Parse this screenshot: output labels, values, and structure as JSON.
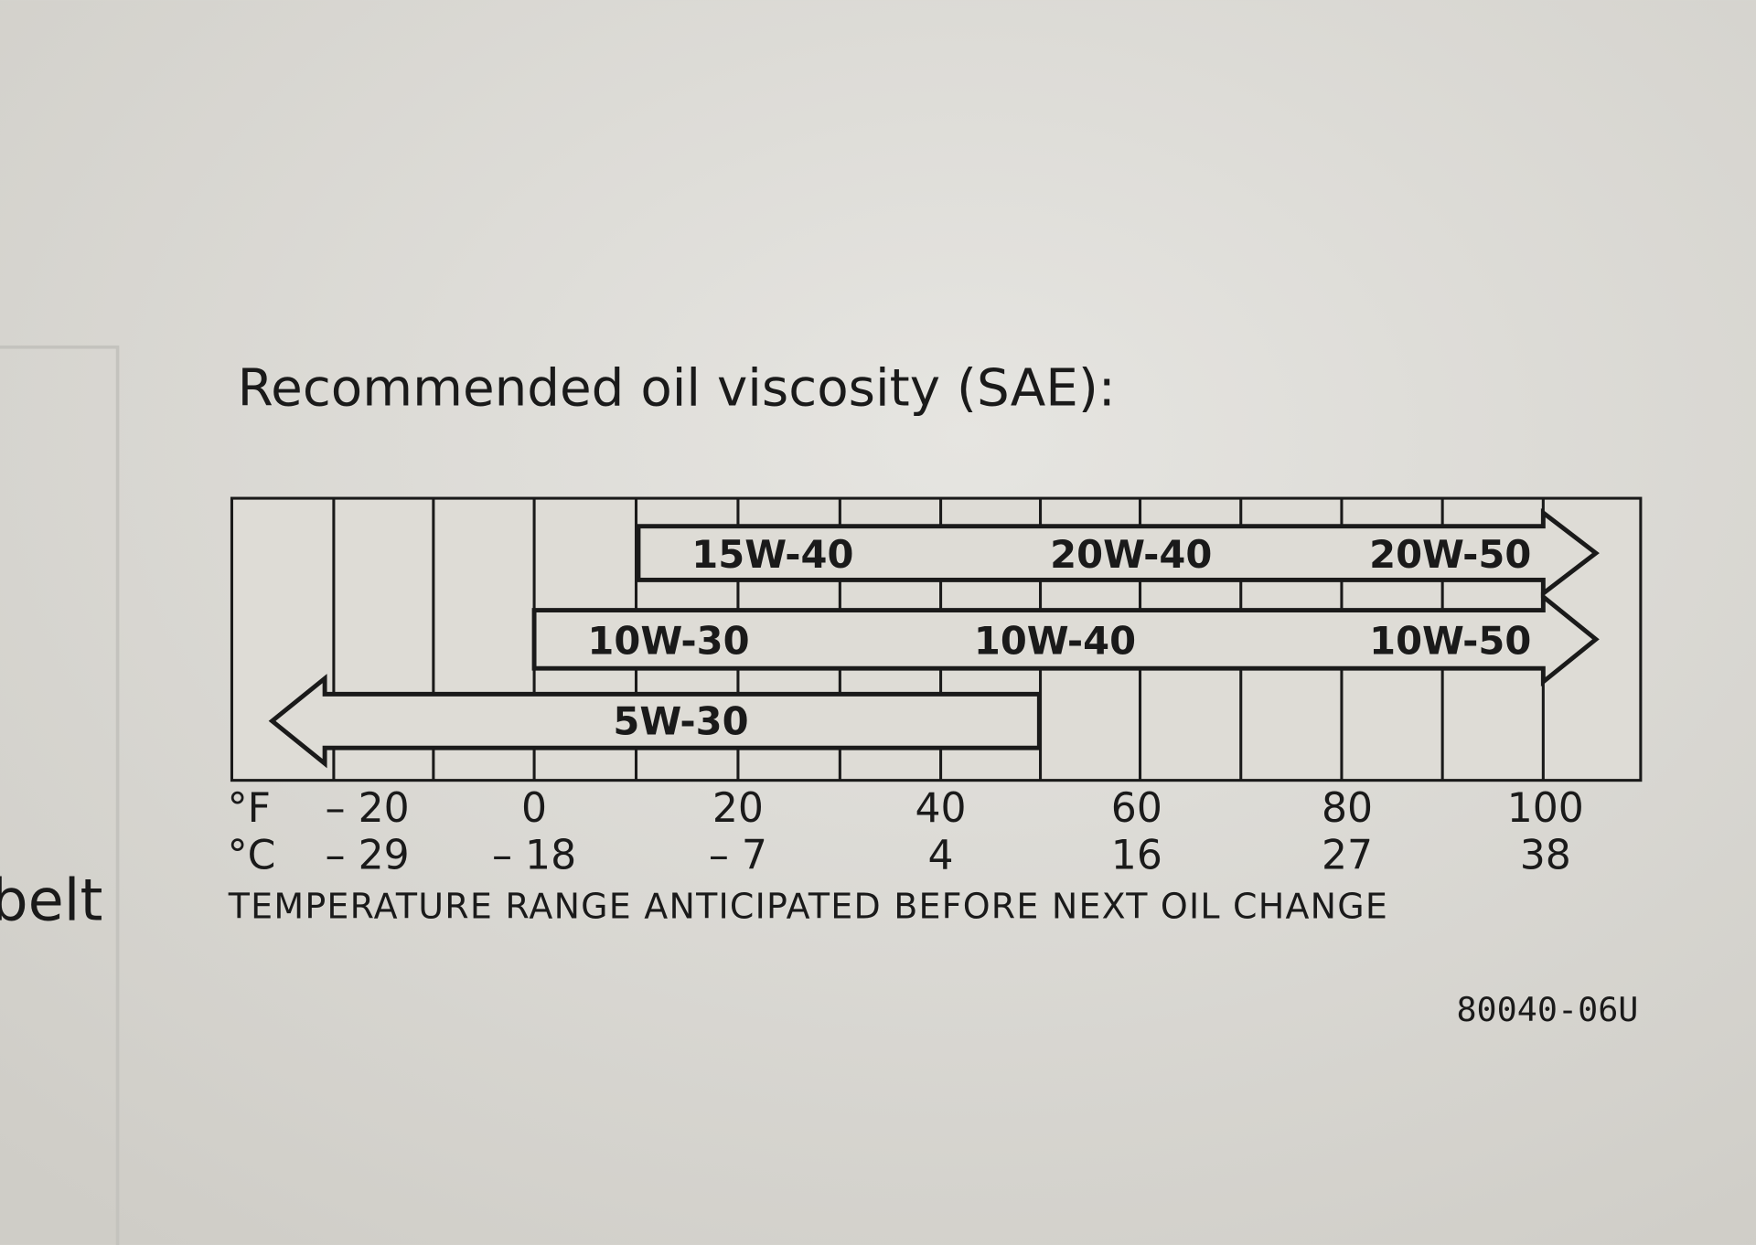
{
  "title": "Recommended oil viscosity (SAE):",
  "rows": [
    [
      "15W-40",
      "20W-40",
      "20W-50"
    ],
    [
      "10W-30",
      "10W-40",
      "10W-50"
    ],
    [
      "5W-30"
    ]
  ],
  "fahrenheit": {
    "unit": "°F",
    "ticks": [
      "– 20",
      "0",
      "20",
      "40",
      "60",
      "80",
      "100"
    ]
  },
  "celsius": {
    "unit": "°C",
    "ticks": [
      "– 29",
      "– 18",
      "– 7",
      "4",
      "16",
      "27",
      "38"
    ]
  },
  "caption": "TEMPERATURE RANGE ANTICIPATED BEFORE NEXT OIL CHANGE",
  "code": "80040-06U",
  "margin_text": "belt"
}
